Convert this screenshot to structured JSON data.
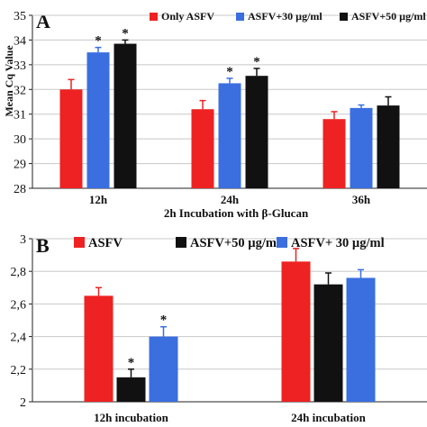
{
  "chart_data": [
    {
      "panel": "A",
      "type": "bar",
      "categories": [
        "12h",
        "24h",
        "36h"
      ],
      "series": [
        {
          "name": "Only ASFV",
          "color": "#ee2222",
          "values": [
            32.0,
            31.2,
            30.8
          ],
          "errors": [
            0.4,
            0.35,
            0.3
          ],
          "sig": [
            false,
            false,
            false
          ]
        },
        {
          "name": "ASFV+30 µg/ml",
          "color": "#3b6fe0",
          "values": [
            33.5,
            32.25,
            31.25
          ],
          "errors": [
            0.2,
            0.2,
            0.12
          ],
          "sig": [
            true,
            true,
            false
          ]
        },
        {
          "name": "ASFV+50 µg/ml",
          "color": "#111111",
          "values": [
            33.85,
            32.55,
            31.35
          ],
          "errors": [
            0.15,
            0.3,
            0.35
          ],
          "sig": [
            true,
            true,
            false
          ]
        }
      ],
      "ylabel": "Mean Cq Value",
      "xlabel": "2h Incubation with β-Glucan",
      "ylim": [
        28,
        35
      ],
      "yticks": [
        "28",
        "29",
        "30",
        "31",
        "32",
        "33",
        "34",
        "35"
      ],
      "sig_marker": "*",
      "legend_position": "top"
    },
    {
      "panel": "B",
      "type": "bar",
      "categories": [
        "12h incubation",
        "24h incubation"
      ],
      "series": [
        {
          "name": "ASFV",
          "color": "#ee2222",
          "values": [
            2.65,
            2.86
          ],
          "errors": [
            0.05,
            0.08
          ],
          "sig": [
            false,
            false
          ]
        },
        {
          "name": "ASFV+50 µg/ml",
          "color": "#111111",
          "values": [
            2.15,
            2.72
          ],
          "errors": [
            0.05,
            0.07
          ],
          "sig": [
            true,
            false
          ]
        },
        {
          "name": "ASFV+ 30 µg/ml",
          "color": "#3b6fe0",
          "values": [
            2.4,
            2.76
          ],
          "errors": [
            0.06,
            0.05
          ],
          "sig": [
            true,
            false
          ]
        }
      ],
      "ylim": [
        2,
        3
      ],
      "yticks": [
        "2",
        "2,2",
        "2,4",
        "2,6",
        "2,8",
        "3"
      ],
      "sig_marker": "*",
      "legend_position": "top"
    }
  ]
}
